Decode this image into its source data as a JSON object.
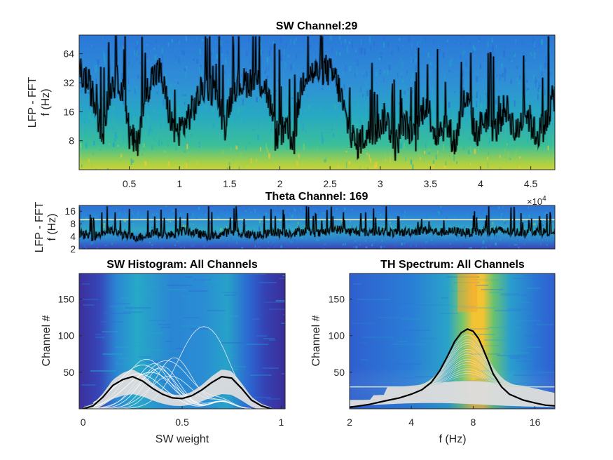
{
  "figure": {
    "colors": {
      "bg_dark": "#3b2d98",
      "bg_blue": "#2a6fd6",
      "bg_cyan": "#22a6c8",
      "bg_teal": "#2fb6a7",
      "bg_green": "#8ccd5a",
      "bg_yellow": "#f7c934",
      "bg_orange": "#f6a52f",
      "trace": "#000000",
      "light_lines": "#dcdcdc",
      "theta_line": "#fff8b0",
      "axis": "#262626"
    }
  },
  "chart_data": [
    {
      "id": "sw_spectrogram",
      "type": "heatmap",
      "title": "SW Channel:29",
      "ylabel_lines": [
        "LFP - FFT",
        "f (Hz)"
      ],
      "xlabel": "",
      "x_tick_values": [
        0.5,
        1,
        1.5,
        2,
        2.5,
        3,
        3.5,
        4,
        4.5
      ],
      "x_tick_labels": [
        "0.5",
        "1",
        "1.5",
        "2",
        "2.5",
        "3",
        "3.5",
        "4",
        "4.5"
      ],
      "x_exponent": "×10",
      "x_exponent_power": "4",
      "xlim": [
        0,
        4.74
      ],
      "yscale": "log2",
      "y_tick_values": [
        8,
        16,
        32,
        64
      ],
      "y_tick_labels": [
        "8",
        "16",
        "32",
        "64"
      ],
      "ylim": [
        4,
        100
      ],
      "overlay_trace_segments": [
        {
          "x": [
            0.0,
            0.1,
            0.18,
            0.25,
            0.32,
            0.4,
            0.5,
            0.58,
            0.65,
            0.72,
            0.8,
            0.88,
            0.95,
            1.05,
            1.15,
            1.25,
            1.35,
            1.45,
            1.55,
            1.65,
            1.75,
            1.85,
            1.95,
            2.05,
            2.15,
            2.25,
            2.35,
            2.45,
            2.55,
            2.65,
            2.75,
            2.85,
            2.95,
            3.05,
            3.15,
            3.25,
            3.35,
            3.45,
            3.55,
            3.65,
            3.75,
            3.85,
            3.95,
            4.05,
            4.15,
            4.25,
            4.35,
            4.45,
            4.55,
            4.65,
            4.74
          ],
          "y": [
            42,
            30,
            14,
            10,
            30,
            34,
            9,
            7,
            20,
            36,
            42,
            18,
            9,
            12,
            18,
            30,
            26,
            11,
            30,
            32,
            34,
            30,
            9,
            10,
            8,
            40,
            40,
            45,
            36,
            14,
            7,
            9,
            10,
            14,
            7,
            12,
            8,
            20,
            9,
            12,
            7,
            22,
            9,
            14,
            10,
            18,
            9,
            16,
            9,
            12,
            24
          ]
        }
      ]
    },
    {
      "id": "theta_spectrogram",
      "type": "heatmap",
      "title": "Theta Channel: 169",
      "ylabel_lines": [
        "LFP - FFT",
        "f (Hz)"
      ],
      "xlim": [
        0,
        4.74
      ],
      "yscale": "log2",
      "y_tick_values": [
        2,
        4,
        8,
        16
      ],
      "y_tick_labels": [
        "2",
        "4",
        "8",
        "16"
      ],
      "ylim": [
        2,
        22
      ],
      "reference_line_hz": 10,
      "overlay_trace": {
        "x": [
          0.0,
          0.15,
          0.3,
          0.45,
          0.6,
          0.75,
          0.9,
          1.05,
          1.2,
          1.35,
          1.5,
          1.65,
          1.8,
          1.95,
          2.1,
          2.25,
          2.4,
          2.55,
          2.7,
          2.85,
          3.0,
          3.15,
          3.3,
          3.45,
          3.6,
          3.75,
          3.9,
          4.05,
          4.2,
          4.35,
          4.5,
          4.74
        ],
        "y": [
          4.5,
          4.0,
          5.5,
          4.2,
          3.8,
          5.0,
          4.2,
          5.5,
          4.5,
          4.0,
          5.2,
          4.6,
          4.2,
          5.0,
          4.8,
          5.4,
          4.6,
          6.0,
          5.2,
          5.0,
          5.4,
          4.8,
          5.2,
          5.6,
          5.0,
          5.3,
          4.9,
          5.2,
          5.5,
          5.0,
          5.3,
          5.0
        ]
      }
    },
    {
      "id": "sw_histogram",
      "type": "heatmap",
      "title": "SW Histogram: All Channels",
      "xlabel": "SW weight",
      "ylabel": "Channel #",
      "x_tick_values": [
        0,
        0.5,
        1
      ],
      "x_tick_labels": [
        "0",
        "0.5",
        "1"
      ],
      "xlim": [
        -0.02,
        1.02
      ],
      "y_tick_values": [
        50,
        100,
        150
      ],
      "y_tick_labels": [
        "50",
        "100",
        "150"
      ],
      "ylim": [
        0,
        185
      ],
      "mean_curve": {
        "x": [
          0.0,
          0.05,
          0.1,
          0.15,
          0.2,
          0.25,
          0.3,
          0.35,
          0.4,
          0.45,
          0.5,
          0.55,
          0.6,
          0.65,
          0.7,
          0.75,
          0.8,
          0.85,
          0.9,
          0.95
        ],
        "y": [
          0,
          4,
          16,
          32,
          40,
          44,
          38,
          28,
          20,
          15,
          14,
          18,
          26,
          36,
          44,
          42,
          28,
          12,
          4,
          0
        ]
      },
      "channel_curve_peaks": [
        {
          "x": 0.3,
          "y": 60
        },
        {
          "x": 0.32,
          "y": 68
        },
        {
          "x": 0.36,
          "y": 62
        },
        {
          "x": 0.38,
          "y": 55
        },
        {
          "x": 0.42,
          "y": 66
        },
        {
          "x": 0.46,
          "y": 70
        },
        {
          "x": 0.34,
          "y": 50
        },
        {
          "x": 0.4,
          "y": 58
        },
        {
          "x": 0.6,
          "y": 110
        },
        {
          "x": 0.28,
          "y": 48
        },
        {
          "x": 0.44,
          "y": 45
        }
      ]
    },
    {
      "id": "th_spectrum",
      "type": "heatmap",
      "title": "TH Spectrum: All Channels",
      "xlabel": "f (Hz)",
      "ylabel": "Channel #",
      "xscale": "log2",
      "x_tick_values": [
        2,
        4,
        8,
        16
      ],
      "x_tick_labels": [
        "2",
        "4",
        "8",
        "16"
      ],
      "xlim": [
        2,
        20
      ],
      "y_tick_values": [
        50,
        100,
        150
      ],
      "y_tick_labels": [
        "50",
        "100",
        "150"
      ],
      "ylim": [
        0,
        185
      ],
      "mean_curve": {
        "x": [
          2,
          2.5,
          3,
          3.5,
          4,
          4.5,
          5,
          5.5,
          6,
          6.5,
          7,
          7.5,
          8,
          8.5,
          9,
          9.5,
          10,
          11,
          12,
          14,
          16,
          18,
          20
        ],
        "y": [
          2,
          6,
          11,
          15,
          20,
          26,
          36,
          52,
          72,
          92,
          104,
          109,
          106,
          96,
          80,
          64,
          48,
          30,
          20,
          12,
          8,
          5,
          4
        ]
      },
      "peak_freq_hz": 7.5
    }
  ]
}
